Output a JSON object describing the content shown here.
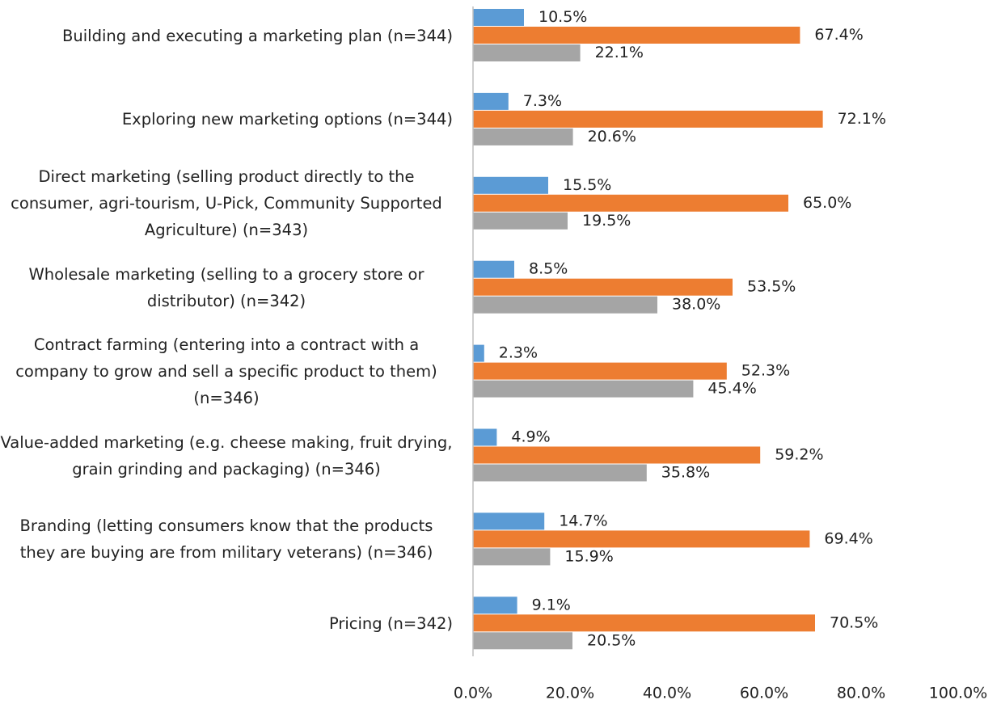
{
  "chart_data": {
    "type": "hbar",
    "categories": [
      "Building and executing a marketing plan (n=344)",
      "Exploring new marketing options (n=344)",
      "Direct marketing (selling product directly to the consumer, agri-tourism, U-Pick, Community Supported Agriculture) (n=343)",
      "Wholesale marketing (selling to a grocery store or distributor) (n=342)",
      "Contract farming (entering into a contract with a company to grow and sell a specific product to them) (n=346)",
      "Value-added marketing (e.g. cheese making, fruit drying, grain grinding and packaging) (n=346)",
      "Branding (letting consumers know that the products they are buying are from military veterans) (n=346)",
      "Pricing (n=342)"
    ],
    "series": [
      {
        "color": "#5b9bd5",
        "values": [
          10.5,
          7.3,
          15.5,
          8.5,
          2.3,
          4.9,
          14.7,
          9.1
        ],
        "value_labels": [
          "10.5%",
          "7.3%",
          "15.5%",
          "8.5%",
          "2.3%",
          "4.9%",
          "14.7%",
          "9.1%"
        ]
      },
      {
        "color": "#ed7d31",
        "values": [
          67.4,
          72.1,
          65.0,
          53.5,
          52.3,
          59.2,
          69.4,
          70.5
        ],
        "value_labels": [
          "67.4%",
          "72.1%",
          "65.0%",
          "53.5%",
          "52.3%",
          "59.2%",
          "69.4%",
          "70.5%"
        ]
      },
      {
        "color": "#a5a5a5",
        "values": [
          22.1,
          20.6,
          19.5,
          38.0,
          45.4,
          35.8,
          15.9,
          20.5
        ],
        "value_labels": [
          "22.1%",
          "20.6%",
          "19.5%",
          "38.0%",
          "45.4%",
          "35.8%",
          "15.9%",
          "20.5%"
        ]
      }
    ],
    "xlim": [
      0,
      100
    ],
    "xticks": [
      {
        "value": 0,
        "label": "0.0%"
      },
      {
        "value": 20,
        "label": "20.0%"
      },
      {
        "value": 40,
        "label": "40.0%"
      },
      {
        "value": 60,
        "label": "60.0%"
      },
      {
        "value": 80,
        "label": "80.0%"
      },
      {
        "value": 100,
        "label": "100.0%"
      }
    ],
    "grid": false
  }
}
